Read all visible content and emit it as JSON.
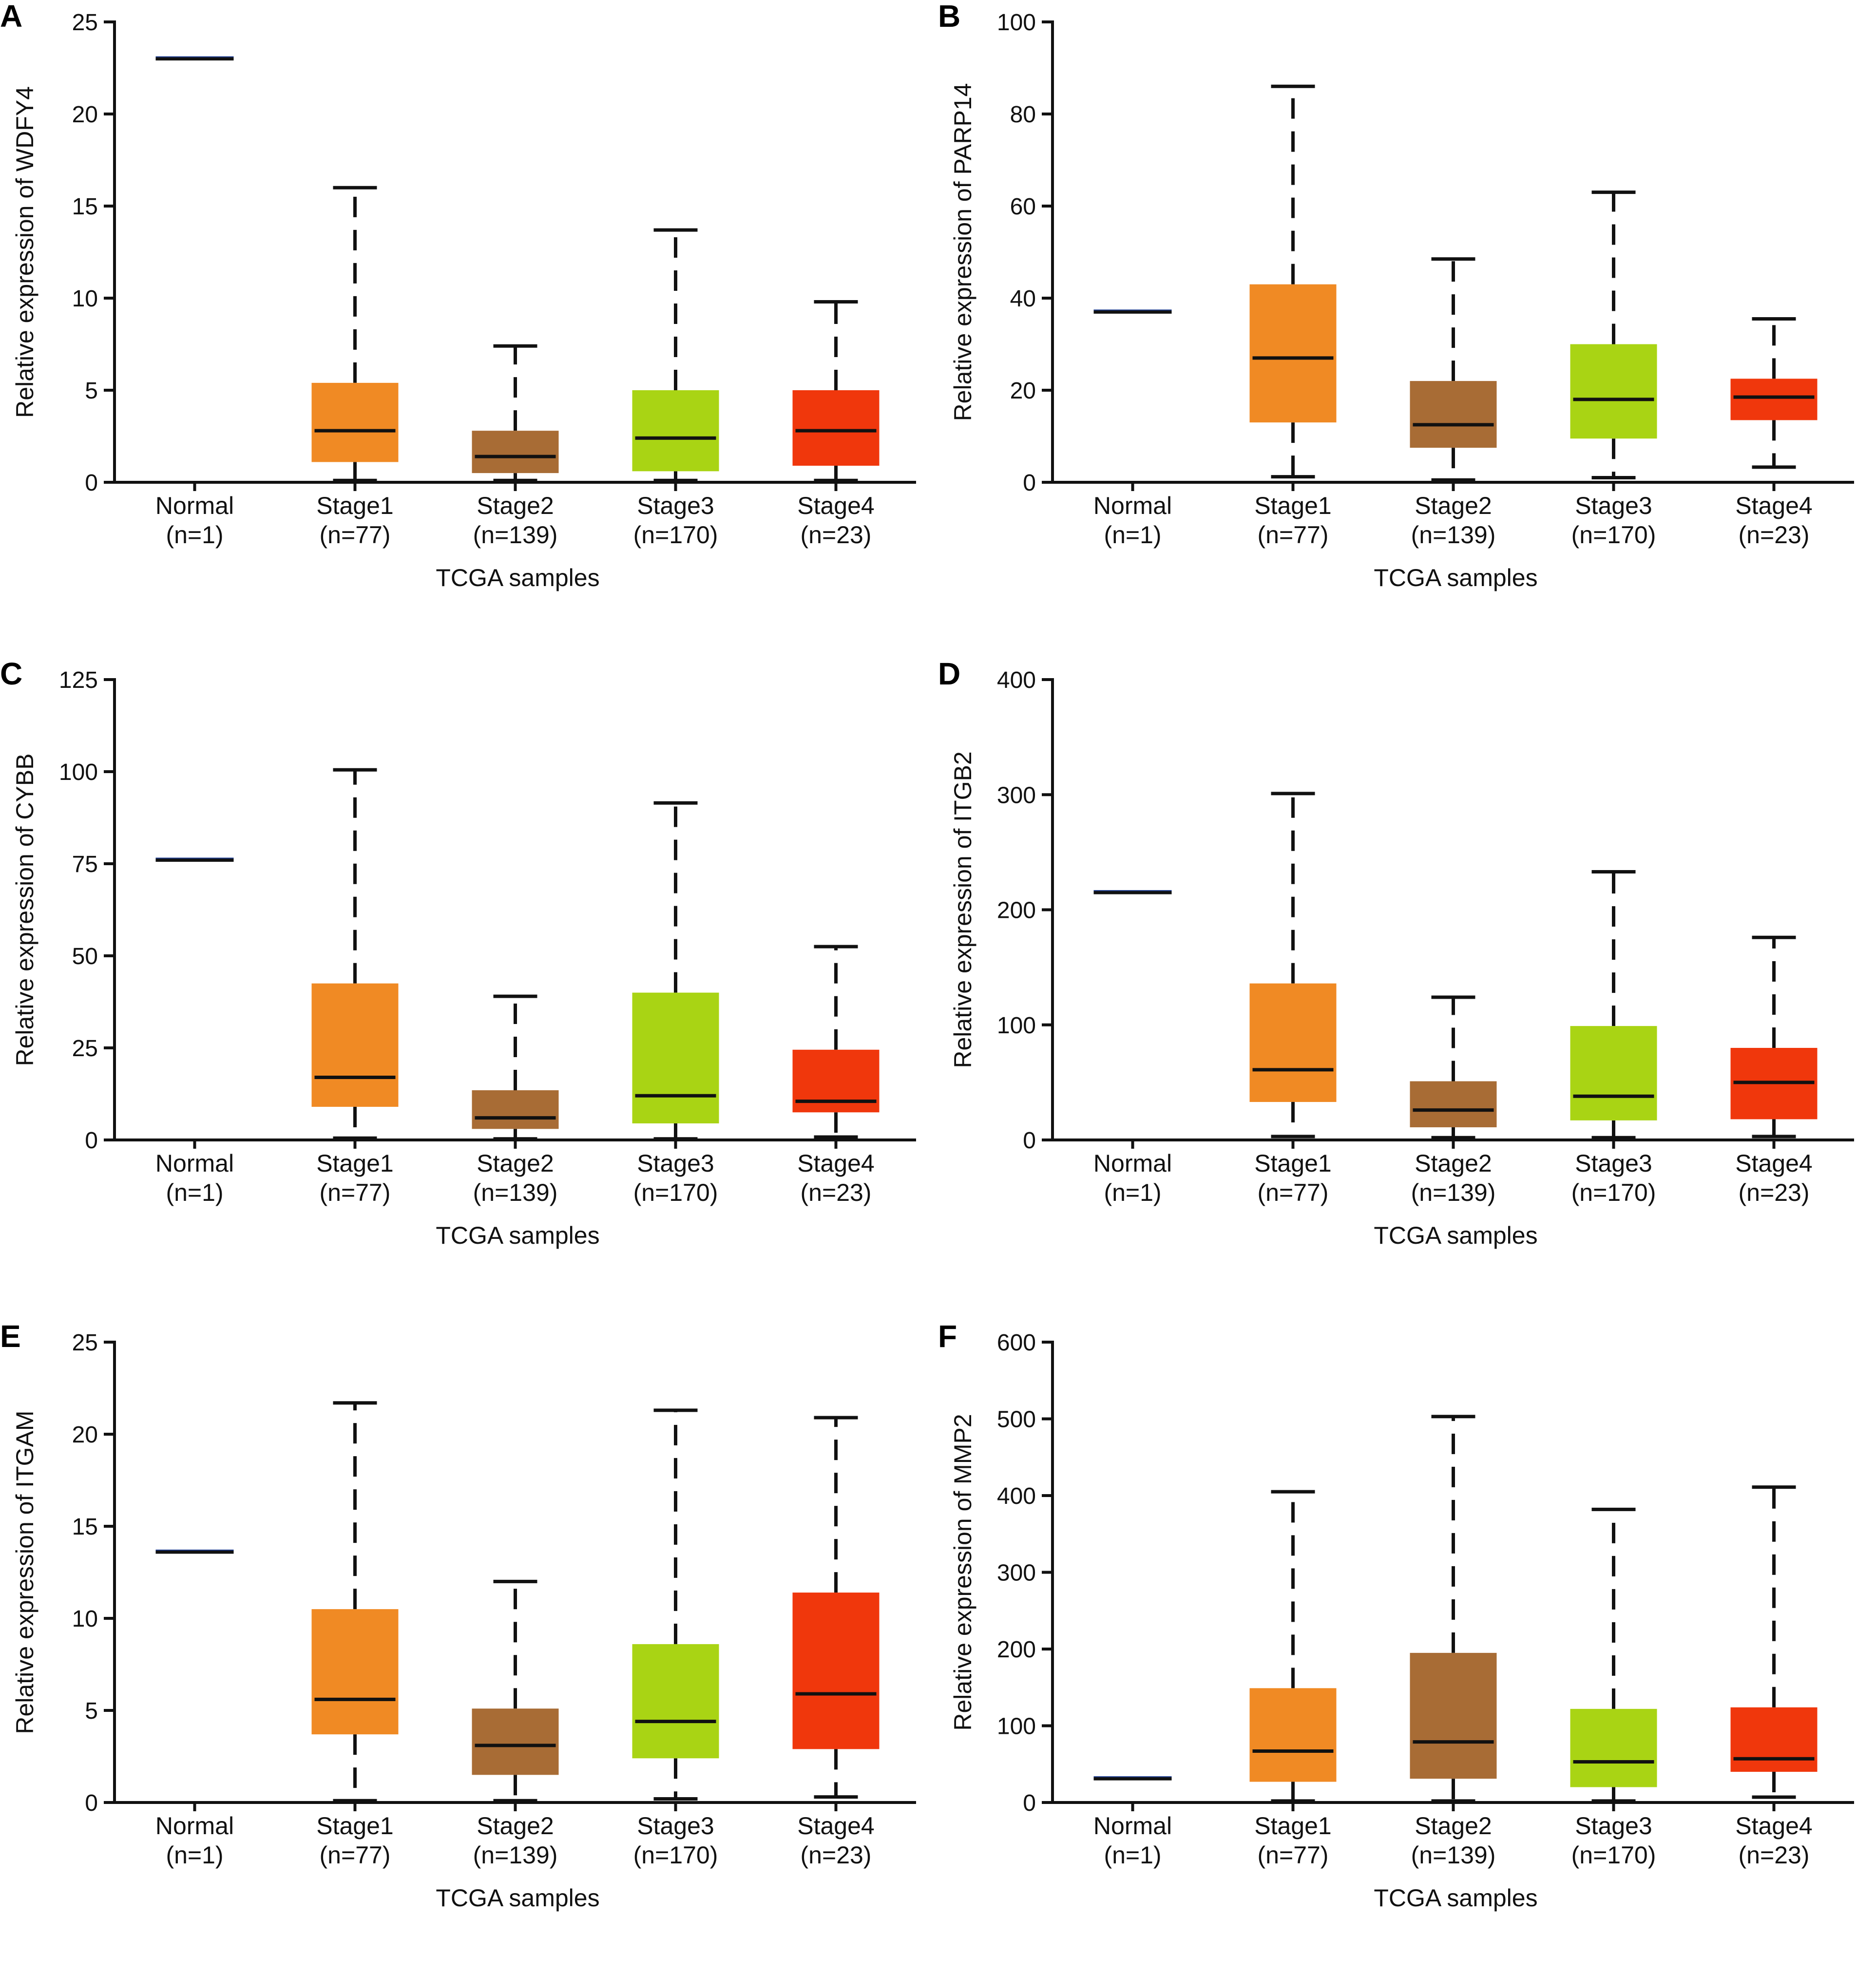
{
  "chart_data": [
    {
      "type": "box",
      "panel_label": "A",
      "gene": "WDFY4",
      "ylabel": "Relative expression of WDFY4",
      "xlabel": "TCGA samples",
      "ylim": [
        0,
        25
      ],
      "yticks": [
        0,
        5,
        10,
        15,
        20,
        25
      ],
      "categories": [
        {
          "name": "Normal",
          "n": "(n=1)",
          "color": "#1b3a8c",
          "min": 23,
          "q1": 23,
          "median": 23,
          "q3": 23,
          "max": 23
        },
        {
          "name": "Stage1",
          "n": "(n=77)",
          "color": "#f08a24",
          "min": 0.1,
          "q1": 1.1,
          "median": 2.8,
          "q3": 5.4,
          "max": 16
        },
        {
          "name": "Stage2",
          "n": "(n=139)",
          "color": "#a86c35",
          "min": 0.1,
          "q1": 0.5,
          "median": 1.4,
          "q3": 2.8,
          "max": 7.4
        },
        {
          "name": "Stage3",
          "n": "(n=170)",
          "color": "#a9d414",
          "min": 0.1,
          "q1": 0.6,
          "median": 2.4,
          "q3": 5.0,
          "max": 13.7
        },
        {
          "name": "Stage4",
          "n": "(n=23)",
          "color": "#f0370c",
          "min": 0.1,
          "q1": 0.9,
          "median": 2.8,
          "q3": 5.0,
          "max": 9.8
        }
      ]
    },
    {
      "type": "box",
      "panel_label": "B",
      "gene": "PARP14",
      "ylabel": "Relative expression of PARP14",
      "xlabel": "TCGA samples",
      "ylim": [
        0,
        100
      ],
      "yticks": [
        0,
        20,
        40,
        60,
        80,
        100
      ],
      "categories": [
        {
          "name": "Normal",
          "n": "(n=1)",
          "color": "#1b3a8c",
          "min": 37,
          "q1": 37,
          "median": 37,
          "q3": 37,
          "max": 37
        },
        {
          "name": "Stage1",
          "n": "(n=77)",
          "color": "#f08a24",
          "min": 1.2,
          "q1": 13,
          "median": 27,
          "q3": 43,
          "max": 86
        },
        {
          "name": "Stage2",
          "n": "(n=139)",
          "color": "#a86c35",
          "min": 0.5,
          "q1": 7.5,
          "median": 12.5,
          "q3": 22,
          "max": 48.5
        },
        {
          "name": "Stage3",
          "n": "(n=170)",
          "color": "#a9d414",
          "min": 1,
          "q1": 9.5,
          "median": 18,
          "q3": 30,
          "max": 63
        },
        {
          "name": "Stage4",
          "n": "(n=23)",
          "color": "#f0370c",
          "min": 3.3,
          "q1": 13.5,
          "median": 18.5,
          "q3": 22.5,
          "max": 35.5
        }
      ]
    },
    {
      "type": "box",
      "panel_label": "C",
      "gene": "CYBB",
      "ylabel": "Relative expression of CYBB",
      "xlabel": "TCGA samples",
      "ylim": [
        0,
        125
      ],
      "yticks": [
        0,
        25,
        50,
        75,
        100,
        125
      ],
      "categories": [
        {
          "name": "Normal",
          "n": "(n=1)",
          "color": "#1b3a8c",
          "min": 76,
          "q1": 76,
          "median": 76,
          "q3": 76,
          "max": 76
        },
        {
          "name": "Stage1",
          "n": "(n=77)",
          "color": "#f08a24",
          "min": 0.5,
          "q1": 9,
          "median": 17,
          "q3": 42.5,
          "max": 100.5
        },
        {
          "name": "Stage2",
          "n": "(n=139)",
          "color": "#a86c35",
          "min": 0.3,
          "q1": 3,
          "median": 6,
          "q3": 13.5,
          "max": 39
        },
        {
          "name": "Stage3",
          "n": "(n=170)",
          "color": "#a9d414",
          "min": 0.3,
          "q1": 4.5,
          "median": 12,
          "q3": 40,
          "max": 91.5
        },
        {
          "name": "Stage4",
          "n": "(n=23)",
          "color": "#f0370c",
          "min": 0.8,
          "q1": 7.5,
          "median": 10.5,
          "q3": 24.5,
          "max": 52.5
        }
      ]
    },
    {
      "type": "box",
      "panel_label": "D",
      "gene": "ITGB2",
      "ylabel": "Relative expression of ITGB2",
      "xlabel": "TCGA samples",
      "ylim": [
        0,
        400
      ],
      "yticks": [
        0,
        100,
        200,
        300,
        400
      ],
      "categories": [
        {
          "name": "Normal",
          "n": "(n=1)",
          "color": "#1b3a8c",
          "min": 215,
          "q1": 215,
          "median": 215,
          "q3": 215,
          "max": 215
        },
        {
          "name": "Stage1",
          "n": "(n=77)",
          "color": "#f08a24",
          "min": 3,
          "q1": 33,
          "median": 61,
          "q3": 136,
          "max": 301
        },
        {
          "name": "Stage2",
          "n": "(n=139)",
          "color": "#a86c35",
          "min": 2,
          "q1": 11,
          "median": 26,
          "q3": 51,
          "max": 124
        },
        {
          "name": "Stage3",
          "n": "(n=170)",
          "color": "#a9d414",
          "min": 2,
          "q1": 17,
          "median": 38,
          "q3": 99,
          "max": 233
        },
        {
          "name": "Stage4",
          "n": "(n=23)",
          "color": "#f0370c",
          "min": 3,
          "q1": 18,
          "median": 50,
          "q3": 80,
          "max": 176
        }
      ]
    },
    {
      "type": "box",
      "panel_label": "E",
      "gene": "ITGAM",
      "ylabel": "Relative expression of ITGAM",
      "xlabel": "TCGA samples",
      "ylim": [
        0,
        25
      ],
      "yticks": [
        0,
        5,
        10,
        15,
        20,
        25
      ],
      "categories": [
        {
          "name": "Normal",
          "n": "(n=1)",
          "color": "#1b3a8c",
          "min": 13.6,
          "q1": 13.6,
          "median": 13.6,
          "q3": 13.6,
          "max": 13.6
        },
        {
          "name": "Stage1",
          "n": "(n=77)",
          "color": "#f08a24",
          "min": 0.1,
          "q1": 3.7,
          "median": 5.6,
          "q3": 10.5,
          "max": 21.7
        },
        {
          "name": "Stage2",
          "n": "(n=139)",
          "color": "#a86c35",
          "min": 0.1,
          "q1": 1.5,
          "median": 3.1,
          "q3": 5.1,
          "max": 12
        },
        {
          "name": "Stage3",
          "n": "(n=170)",
          "color": "#a9d414",
          "min": 0.2,
          "q1": 2.4,
          "median": 4.4,
          "q3": 8.6,
          "max": 21.3
        },
        {
          "name": "Stage4",
          "n": "(n=23)",
          "color": "#f0370c",
          "min": 0.3,
          "q1": 2.9,
          "median": 5.9,
          "q3": 11.4,
          "max": 20.9
        }
      ]
    },
    {
      "type": "box",
      "panel_label": "F",
      "gene": "MMP2",
      "ylabel": "Relative expression of MMP2",
      "xlabel": "TCGA samples",
      "ylim": [
        0,
        600
      ],
      "yticks": [
        0,
        100,
        200,
        300,
        400,
        500,
        600
      ],
      "categories": [
        {
          "name": "Normal",
          "n": "(n=1)",
          "color": "#1b3a8c",
          "min": 31,
          "q1": 31,
          "median": 31,
          "q3": 31,
          "max": 31
        },
        {
          "name": "Stage1",
          "n": "(n=77)",
          "color": "#f08a24",
          "min": 2,
          "q1": 27,
          "median": 67,
          "q3": 149,
          "max": 405
        },
        {
          "name": "Stage2",
          "n": "(n=139)",
          "color": "#a86c35",
          "min": 2,
          "q1": 31,
          "median": 79,
          "q3": 195,
          "max": 503
        },
        {
          "name": "Stage3",
          "n": "(n=170)",
          "color": "#a9d414",
          "min": 2,
          "q1": 20,
          "median": 53,
          "q3": 122,
          "max": 382
        },
        {
          "name": "Stage4",
          "n": "(n=23)",
          "color": "#f0370c",
          "min": 7,
          "q1": 40,
          "median": 57,
          "q3": 124,
          "max": 411
        }
      ]
    }
  ]
}
